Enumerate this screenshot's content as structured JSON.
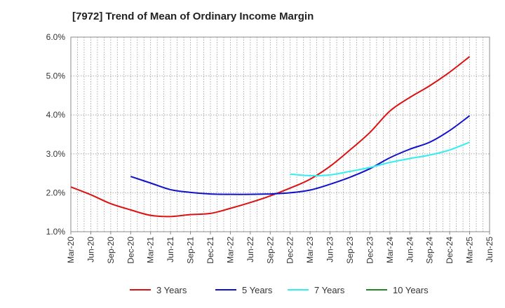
{
  "chart_data": {
    "type": "line",
    "title": "[7972]  Trend of Mean of Ordinary Income Margin",
    "xlabel": "",
    "ylabel": "",
    "x_ticks": [
      "Mar-20",
      "Jun-20",
      "Sep-20",
      "Dec-20",
      "Mar-21",
      "Jun-21",
      "Sep-21",
      "Dec-21",
      "Mar-22",
      "Jun-22",
      "Sep-22",
      "Dec-22",
      "Mar-23",
      "Jun-23",
      "Sep-23",
      "Dec-23",
      "Mar-24",
      "Jun-24",
      "Sep-24",
      "Dec-24",
      "Mar-25",
      "Jun-25"
    ],
    "y_ticks": [
      "1.0%",
      "2.0%",
      "3.0%",
      "4.0%",
      "5.0%",
      "6.0%"
    ],
    "ylim": [
      1.0,
      6.0
    ],
    "grid": true,
    "legend_position": "bottom",
    "series": [
      {
        "name": "3 Years",
        "color": "#dd1111",
        "x": [
          "Mar-20",
          "Jun-20",
          "Sep-20",
          "Dec-20",
          "Mar-21",
          "Jun-21",
          "Sep-21",
          "Dec-21",
          "Mar-22",
          "Jun-22",
          "Sep-22",
          "Dec-22",
          "Mar-23",
          "Jun-23",
          "Sep-23",
          "Dec-23",
          "Mar-24",
          "Jun-24",
          "Sep-24",
          "Dec-24",
          "Mar-25"
        ],
        "values": [
          2.15,
          1.95,
          1.72,
          1.56,
          1.42,
          1.39,
          1.44,
          1.47,
          1.6,
          1.75,
          1.92,
          2.12,
          2.35,
          2.68,
          3.1,
          3.55,
          4.1,
          4.45,
          4.75,
          5.1,
          5.5
        ]
      },
      {
        "name": "5 Years",
        "color": "#1111cc",
        "x": [
          "Dec-20",
          "Mar-21",
          "Jun-21",
          "Sep-21",
          "Dec-21",
          "Mar-22",
          "Jun-22",
          "Sep-22",
          "Dec-22",
          "Mar-23",
          "Jun-23",
          "Sep-23",
          "Dec-23",
          "Mar-24",
          "Jun-24",
          "Sep-24",
          "Dec-24",
          "Mar-25"
        ],
        "values": [
          2.42,
          2.25,
          2.08,
          2.01,
          1.97,
          1.96,
          1.96,
          1.97,
          2.0,
          2.07,
          2.22,
          2.4,
          2.62,
          2.9,
          3.12,
          3.3,
          3.6,
          3.98
        ]
      },
      {
        "name": "7 Years",
        "color": "#33eeee",
        "x": [
          "Dec-22",
          "Mar-23",
          "Jun-23",
          "Sep-23",
          "Dec-23",
          "Mar-24",
          "Jun-24",
          "Sep-24",
          "Dec-24",
          "Mar-25"
        ],
        "values": [
          2.48,
          2.44,
          2.46,
          2.55,
          2.65,
          2.78,
          2.88,
          2.97,
          3.1,
          3.3
        ]
      },
      {
        "name": "10 Years",
        "color": "#228822",
        "x": [],
        "values": []
      }
    ]
  }
}
